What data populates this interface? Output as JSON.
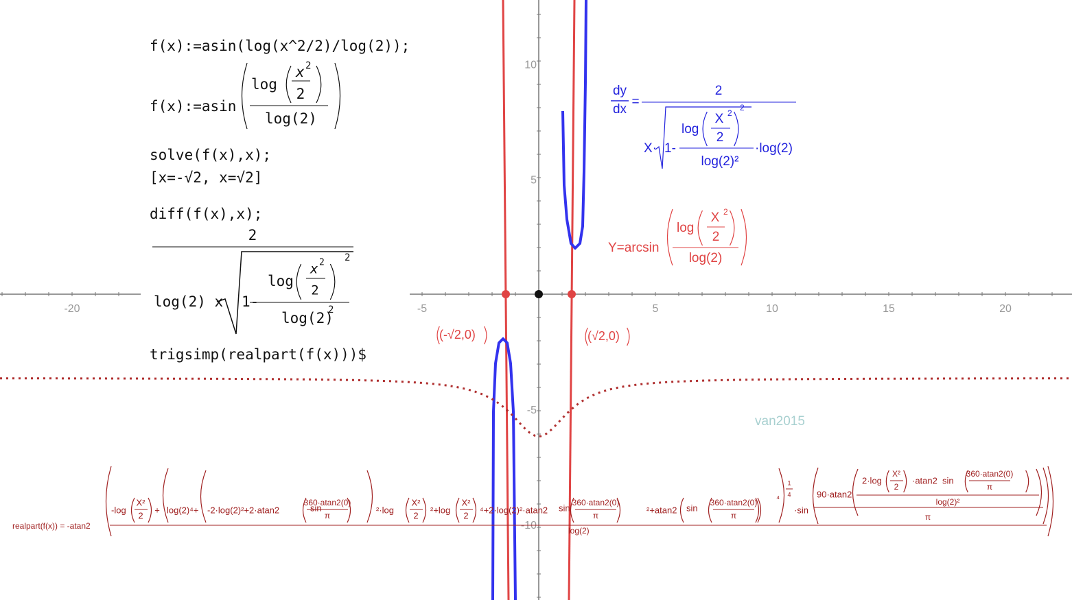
{
  "axes": {
    "x_ticks": [
      -20,
      -5,
      5,
      10,
      15,
      20
    ],
    "y_ticks": [
      10,
      5,
      -5,
      -10
    ]
  },
  "maxima": {
    "input_1": "f(x):=asin(log(x^2/2)/log(2));",
    "output_1": [
      "f(x):=asin",
      "log",
      "x",
      "2",
      "2",
      "log(2)"
    ],
    "input_2": "solve(f(x),x);",
    "output_2": "[x=-√2, x=√2]",
    "input_3": "diff(f(x),x);",
    "output_3": [
      "2",
      "log(2) x",
      "1-",
      "log",
      "x",
      "2",
      "2",
      "2",
      "log(2)",
      "2"
    ],
    "input_4": "trigsimp(realpart(f(x)))$"
  },
  "points": [
    "(-√2,0)",
    "(√2,0)"
  ],
  "derivative_label": [
    "dy",
    "dx",
    "=",
    "2",
    "X·",
    "1-",
    "log",
    "X",
    "2",
    "2",
    "2",
    "log(2)²",
    "·log(2)"
  ],
  "function_label": [
    "Y=arcsin",
    "log",
    "X",
    "2",
    "2",
    "log(2)"
  ],
  "watermark": "van2015",
  "realpart_formula": [
    "realpart(f(x)) = -atan2",
    "-log",
    "X²",
    "2",
    "+",
    "log(2)⁴+",
    "-2·log(2)²+2·atan2",
    "sin",
    "360·atan2(0)",
    "π",
    "²·log",
    "X²",
    "2",
    "²+log",
    "X²",
    "2",
    "⁴+2·log(2)²·atan2",
    "sin",
    "360·atan2(0)",
    "π",
    "²+atan2",
    "sin",
    "360·atan2(0)",
    "π",
    "⁴",
    "1",
    "4",
    "·sin",
    "90·atan2",
    "2·log",
    "X²",
    "2",
    "·atan2",
    "sin",
    "360·atan2(0)",
    "π",
    "log(2)²",
    "π",
    "log(2)"
  ]
}
